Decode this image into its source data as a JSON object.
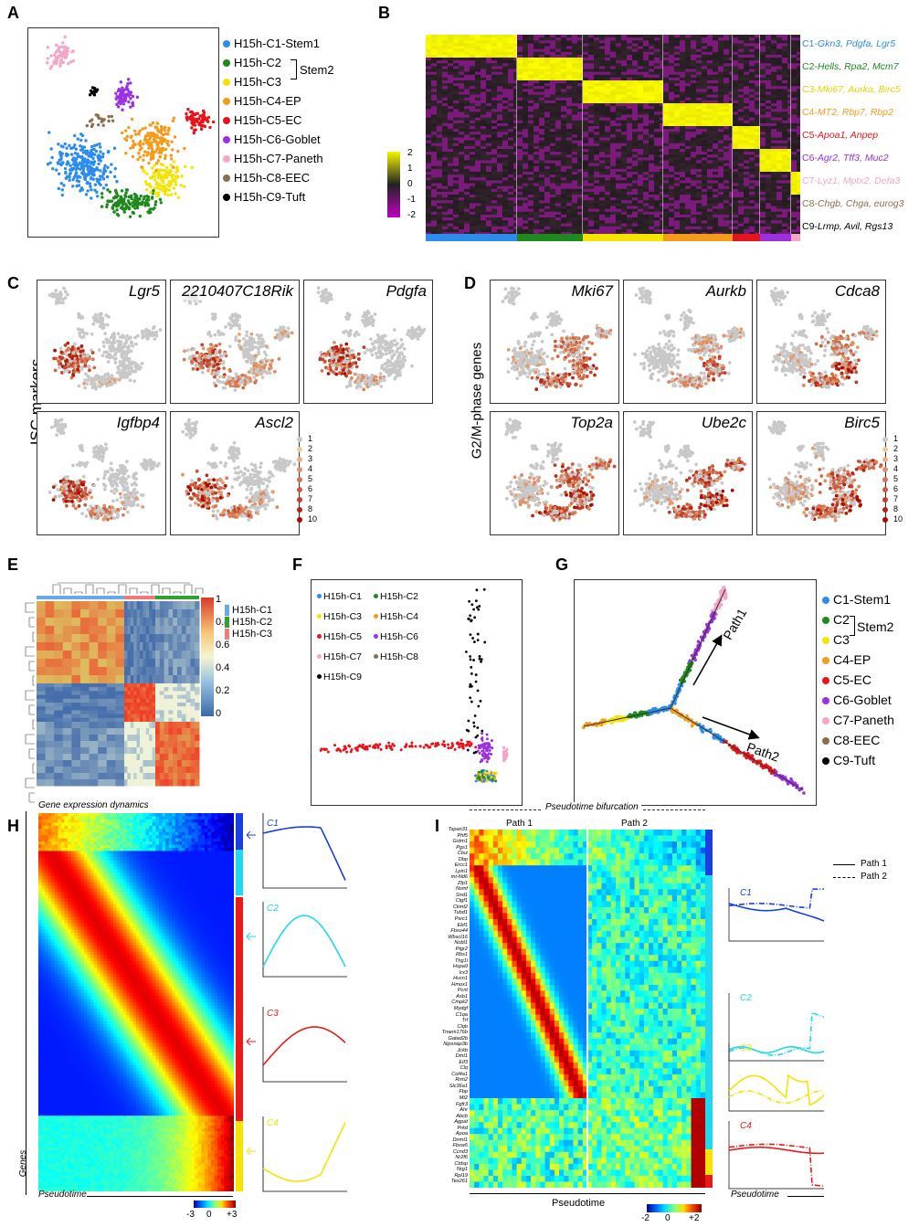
{
  "panel_labels": {
    "A": "A",
    "B": "B",
    "C": "C",
    "D": "D",
    "E": "E",
    "F": "F",
    "G": "G",
    "H": "H",
    "I": "I"
  },
  "panelA": {
    "legend": [
      {
        "label": "H15h-C1-Stem1",
        "color": "#2b8cee"
      },
      {
        "label": "H15h-C2",
        "color": "#1e8a1e"
      },
      {
        "label": "H15h-C3",
        "color": "#f5e400"
      },
      {
        "label": "H15h-C4-EP",
        "color": "#f59b1a"
      },
      {
        "label": "H15h-C5-EC",
        "color": "#e8141b"
      },
      {
        "label": "H15h-C6-Goblet",
        "color": "#9b30e0"
      },
      {
        "label": "H15h-C7-Paneth",
        "color": "#f4a6c6"
      },
      {
        "label": "H15h-C8-EEC",
        "color": "#8c6e4e"
      },
      {
        "label": "H15h-C9-Tuft",
        "color": "#000000"
      }
    ],
    "bracket_label": "Stem2"
  },
  "panelB": {
    "colorbar_ticks": [
      "2",
      "1",
      "0",
      "-1",
      "-2"
    ],
    "rows": [
      {
        "prefix": "C1-",
        "genes": "Gkn3, Pdgfa, Lgr5",
        "color": "#2b8cee"
      },
      {
        "prefix": "C2-",
        "genes": "Hells, Rpa2, Mcm7",
        "color": "#1e8a1e"
      },
      {
        "prefix": "C3-",
        "genes": "Mki67, Aurka, Birc5",
        "color": "#e8d400"
      },
      {
        "prefix": "C4-",
        "genes": "MT2, Rbp7, Rbp2",
        "color": "#f59b1a"
      },
      {
        "prefix": "C5-",
        "genes": "Apoa1, Anpep",
        "color": "#e8141b"
      },
      {
        "prefix": "C6-",
        "genes": "Agr2, Tff3, Muc2",
        "color": "#9b30e0"
      },
      {
        "prefix": "C7-",
        "genes": "Lyz1, Mptx2, Defa3",
        "color": "#f4a6c6"
      },
      {
        "prefix": "C8-",
        "genes": "Chgb, Chga, eurog3",
        "color": "#8c6e4e"
      },
      {
        "prefix": "C9-",
        "genes": "Lrmp, Avil, Rgs13",
        "color": "#000000"
      }
    ]
  },
  "panelC": {
    "ylabel": "ISC markers",
    "genes": [
      "Lgr5",
      "2210407C18Rik",
      "Pdgfa",
      "Igfbp4",
      "Ascl2"
    ],
    "scale": [
      "1",
      "2",
      "3",
      "4",
      "5",
      "6",
      "7",
      "8",
      "10"
    ]
  },
  "panelD": {
    "ylabel": "G2/M-phase genes",
    "genes": [
      "Mki67",
      "Aurkb",
      "Cdca8",
      "Top2a",
      "Ube2c",
      "Birc5"
    ],
    "scale": [
      "1",
      "2",
      "3",
      "4",
      "5",
      "6",
      "7",
      "8",
      "10"
    ]
  },
  "panelE": {
    "colorbar_ticks": [
      "1",
      "0.8",
      "0.6",
      "0.4",
      "0.2",
      "0"
    ],
    "legend": [
      {
        "label": "H15h-C1",
        "color": "#6aa8e6"
      },
      {
        "label": "H15h-C2",
        "color": "#2fa22f"
      },
      {
        "label": "H15h-C3",
        "color": "#f07a7a"
      }
    ]
  },
  "panelF": {
    "legend": [
      {
        "label": "H15h-C1",
        "color": "#2b8cee"
      },
      {
        "label": "H15h-C2",
        "color": "#1e8a1e"
      },
      {
        "label": "H15h-C3",
        "color": "#f5e400"
      },
      {
        "label": "H15h-C4",
        "color": "#f59b1a"
      },
      {
        "label": "H15h-C5",
        "color": "#e8141b"
      },
      {
        "label": "H15h-C6",
        "color": "#9b30e0"
      },
      {
        "label": "H15h-C7",
        "color": "#f4a6c6"
      },
      {
        "label": "H15h-C8",
        "color": "#8c6e4e"
      },
      {
        "label": "H15h-C9",
        "color": "#000000"
      }
    ]
  },
  "panelG": {
    "legend": [
      {
        "label": "C1-Stem1",
        "color": "#2b8cee"
      },
      {
        "label": "C2",
        "color": "#1e8a1e"
      },
      {
        "label": "C3",
        "color": "#f5e400"
      },
      {
        "label": "C4-EP",
        "color": "#f59b1a"
      },
      {
        "label": "C5-EC",
        "color": "#e8141b"
      },
      {
        "label": "C6-Goblet",
        "color": "#9b30e0"
      },
      {
        "label": "C7-Paneth",
        "color": "#f4a6c6"
      },
      {
        "label": "C8-EEC",
        "color": "#8c6e4e"
      },
      {
        "label": "C9-Tuft",
        "color": "#000000"
      }
    ],
    "bracket_label": "Stem2",
    "path1": "Path1",
    "path2": "Path2"
  },
  "panelH": {
    "title": "Gene expression dynamics",
    "ylabel": "Genes",
    "xlabel": "Pseudotime",
    "colorbar": [
      "-3",
      "0",
      "+3"
    ],
    "clusters": [
      {
        "label": "C1",
        "color": "#1a3fe0"
      },
      {
        "label": "C2",
        "color": "#22d8ee"
      },
      {
        "label": "C3",
        "color": "#e81a1a"
      },
      {
        "label": "C4",
        "color": "#f5e400"
      }
    ]
  },
  "panelI": {
    "title": "Pseudotime bifurcation",
    "path1": "Path 1",
    "path2": "Path 2",
    "xlabel": "Pseudotime",
    "colorbar": [
      "-2",
      "0",
      "+2"
    ],
    "legend_path1": "Path 1",
    "legend_path2": "Path 2",
    "curve_xlabel": "Pseudotime",
    "clusters": [
      {
        "label": "C1",
        "color": "#1a3fe0"
      },
      {
        "label": "C2",
        "color": "#22d8ee"
      },
      {
        "label": "C3",
        "color": "#f5e400"
      },
      {
        "label": "C4",
        "color": "#e81a1a"
      }
    ],
    "genes": [
      "Tspan31",
      "Phf5",
      "Gstm1",
      "Pgs1",
      "Ctsz",
      "Dbp",
      "Ercc1",
      "Lpin1",
      "mt-Nd6",
      "Zfp1",
      "Nsmf",
      "Snd1",
      "Ctgf1",
      "Ckmt2",
      "Tubd1",
      "Psrc1",
      "Ebf1",
      "Fbxo44",
      "Wbsct16",
      "Nobl1",
      "Ptgr2",
      "Rbs1",
      "Thg1l",
      "Hspa9",
      "Irx3",
      "Hvcn1",
      "Hmox1",
      "Pcnt",
      "Asb1",
      "Cmpk2",
      "Mydgf",
      "C1qa",
      "Trf",
      "Clqb",
      "Tmem176b",
      "Gatad2b",
      "Nipsnap3b",
      "Jckb",
      "Dmt1",
      "Eif3",
      "Clq",
      "Col4a1",
      "Rrm2",
      "Slc36a1",
      "Fbp",
      "Mt2",
      "Fgfr3",
      "Ahr",
      "Abcb",
      "Agpat",
      "Prkd",
      "Apoa",
      "Dnmt1",
      "Fbxw5",
      "Ccnd3",
      "Nr2f6",
      "Ctdsp",
      "Nrg1",
      "Rpl19",
      "Tex261"
    ]
  }
}
